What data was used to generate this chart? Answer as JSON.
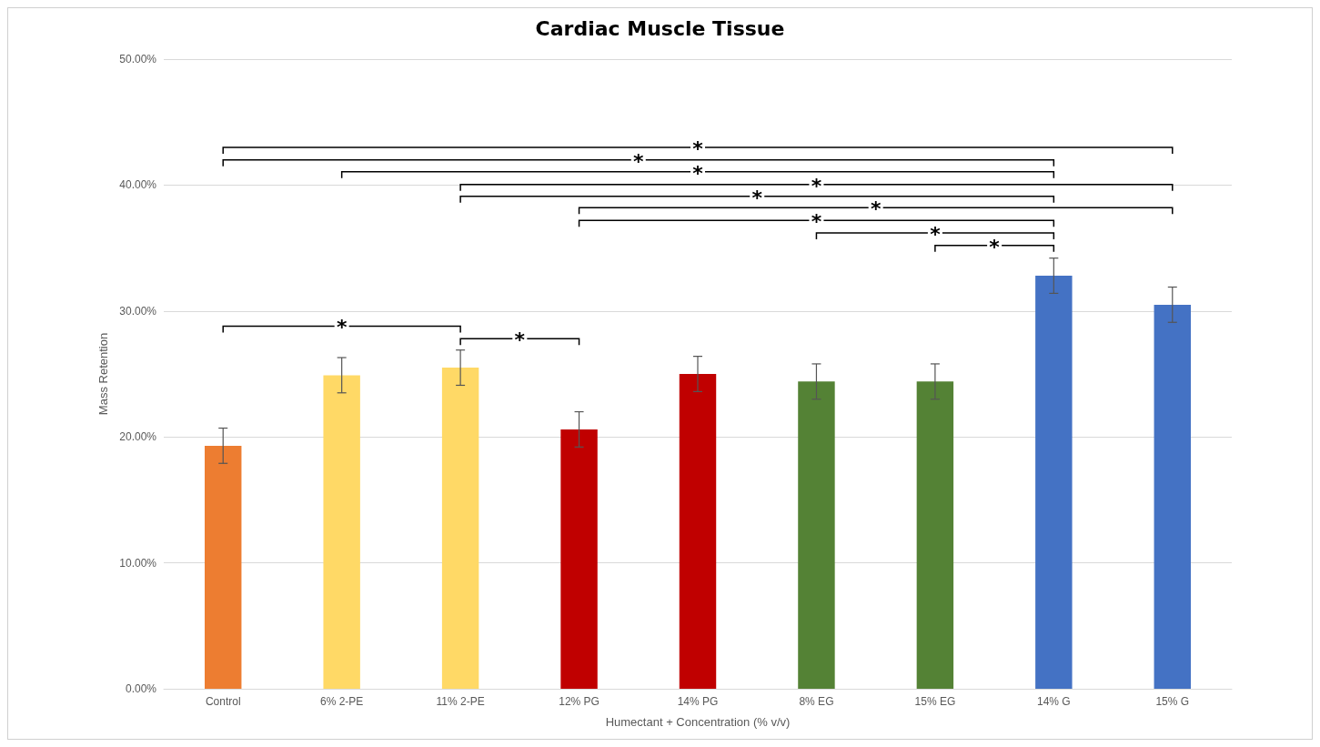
{
  "chart_data": {
    "type": "bar",
    "title": "Cardiac Muscle Tissue",
    "xlabel": "Humectant + Concentration (% v/v)",
    "ylabel": "Mass Retention",
    "categories": [
      "Control",
      "6% 2-PE",
      "11% 2-PE",
      "12% PG",
      "14% PG",
      "8% EG",
      "15% EG",
      "14% G",
      "15% G"
    ],
    "values": [
      19.3,
      24.9,
      25.5,
      20.6,
      25.0,
      24.4,
      24.4,
      32.8,
      30.5
    ],
    "errors": [
      1.4,
      1.4,
      1.4,
      1.4,
      1.4,
      1.4,
      1.4,
      1.4,
      1.4
    ],
    "colors": [
      "#ed7d31",
      "#ffd966",
      "#ffd966",
      "#c00000",
      "#c00000",
      "#548235",
      "#548235",
      "#4472c4",
      "#4472c4"
    ],
    "ylim": [
      0,
      50
    ],
    "yticks": [
      {
        "value": 0,
        "label": "0.00%"
      },
      {
        "value": 10,
        "label": "10.00%"
      },
      {
        "value": 20,
        "label": "20.00%"
      },
      {
        "value": 30,
        "label": "30.00%"
      },
      {
        "value": 40,
        "label": "40.00%"
      },
      {
        "value": 50,
        "label": "50.00%"
      }
    ],
    "grid": "y",
    "annotations": [
      "*",
      "*",
      "*",
      "*",
      "*",
      "*",
      "*",
      "*",
      "*",
      "*",
      "*"
    ]
  }
}
